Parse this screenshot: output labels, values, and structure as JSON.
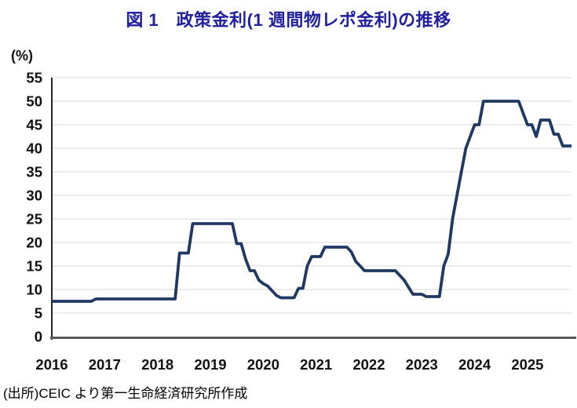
{
  "title": "図 1　政策金利(1 週間物レポ金利)の推移",
  "source": "(出所)CEIC より第一生命経済研究所作成",
  "colors": {
    "title": "#21219F",
    "line": "#1F3864",
    "grid": "#D9D9D9",
    "x_axis": "#595959",
    "y_axis": "#262626",
    "tick_text": "#111111"
  },
  "chart_data": {
    "type": "line",
    "title": "図 1　政策金利(1 週間物レポ金利)の推移",
    "ylabel": "(%)",
    "xlabel": "",
    "ylim": [
      0,
      55
    ],
    "ytick_step": 5,
    "grid": true,
    "legend_position": "none",
    "x_tick_labels": [
      "2016",
      "2017",
      "2018",
      "2019",
      "2020",
      "2021",
      "2022",
      "2023",
      "2024",
      "2025"
    ],
    "x_start_month": "2016-01",
    "x_end_month": "2025-11",
    "series": [
      {
        "name": "政策金利(1週間物レポ金利)",
        "unit": "%",
        "monthly_values": [
          7.5,
          7.5,
          7.5,
          7.5,
          7.5,
          7.5,
          7.5,
          7.5,
          7.5,
          7.5,
          8,
          8,
          8,
          8,
          8,
          8,
          8,
          8,
          8,
          8,
          8,
          8,
          8,
          8,
          8,
          8,
          8,
          8,
          8,
          17.75,
          17.75,
          17.75,
          24,
          24,
          24,
          24,
          24,
          24,
          24,
          24,
          24,
          24,
          19.75,
          19.75,
          16.5,
          14,
          14,
          12,
          11.25,
          10.75,
          9.75,
          8.75,
          8.25,
          8.25,
          8.25,
          8.25,
          10.25,
          10.25,
          15,
          17,
          17,
          17,
          19,
          19,
          19,
          19,
          19,
          19,
          18,
          16,
          15,
          14,
          14,
          14,
          14,
          14,
          14,
          14,
          14,
          13,
          12,
          10.5,
          9,
          9,
          9,
          8.5,
          8.5,
          8.5,
          8.5,
          15,
          17.5,
          25,
          30,
          35,
          40,
          42.5,
          45,
          45,
          50,
          50,
          50,
          50,
          50,
          50,
          50,
          50,
          50,
          47.5,
          45,
          45,
          42.5,
          46,
          46,
          46,
          43,
          43,
          40.5,
          40.5,
          40.5
        ]
      }
    ]
  }
}
